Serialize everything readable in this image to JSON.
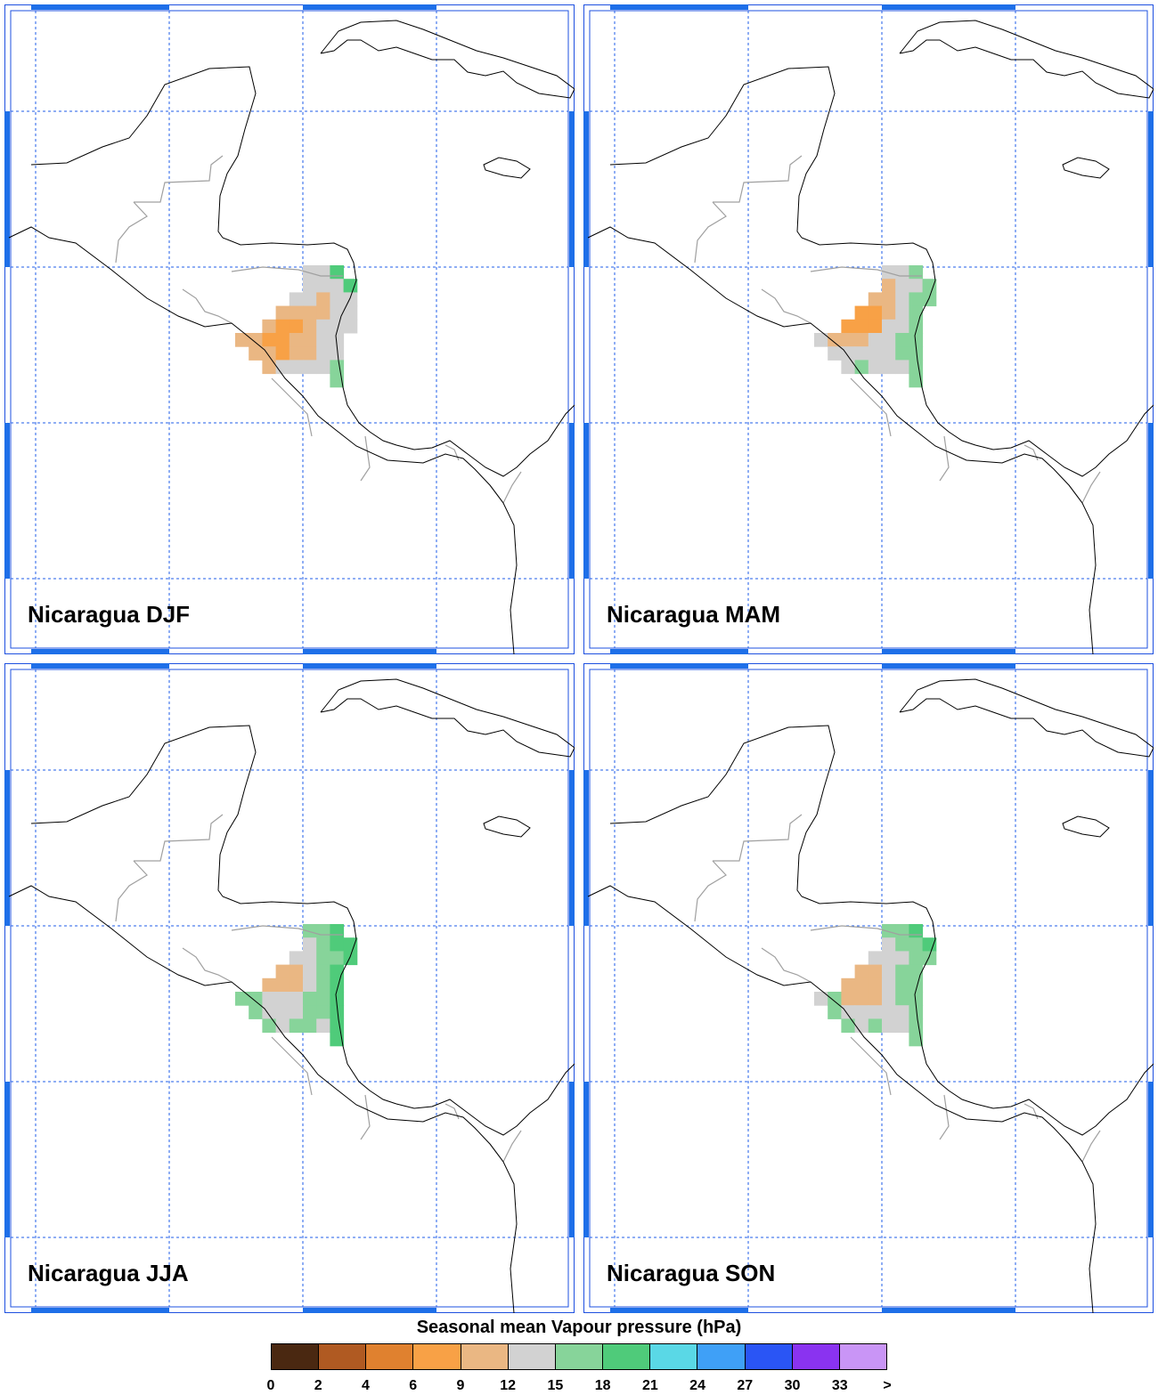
{
  "panels": [
    {
      "title": "Nicaragua DJF",
      "season": "DJF",
      "cells": [
        [
          0,
          0,
          5
        ],
        [
          1,
          0,
          5
        ],
        [
          2,
          0,
          7
        ],
        [
          0,
          1,
          5
        ],
        [
          1,
          1,
          5
        ],
        [
          2,
          1,
          5
        ],
        [
          3,
          1,
          7
        ],
        [
          -1,
          2,
          5
        ],
        [
          0,
          2,
          5
        ],
        [
          1,
          2,
          4
        ],
        [
          2,
          2,
          5
        ],
        [
          3,
          2,
          5
        ],
        [
          -2,
          3,
          4
        ],
        [
          -1,
          3,
          4
        ],
        [
          0,
          3,
          4
        ],
        [
          1,
          3,
          4
        ],
        [
          2,
          3,
          5
        ],
        [
          3,
          3,
          5
        ],
        [
          -3,
          4,
          4
        ],
        [
          -2,
          4,
          3
        ],
        [
          -1,
          4,
          3
        ],
        [
          0,
          4,
          4
        ],
        [
          1,
          4,
          5
        ],
        [
          2,
          4,
          5
        ],
        [
          3,
          4,
          5
        ],
        [
          -5,
          5,
          4
        ],
        [
          -4,
          5,
          4
        ],
        [
          -3,
          5,
          3
        ],
        [
          -2,
          5,
          3
        ],
        [
          -1,
          5,
          4
        ],
        [
          0,
          5,
          4
        ],
        [
          1,
          5,
          5
        ],
        [
          2,
          5,
          5
        ],
        [
          -4,
          6,
          4
        ],
        [
          -3,
          6,
          4
        ],
        [
          -2,
          6,
          3
        ],
        [
          -1,
          6,
          4
        ],
        [
          0,
          6,
          4
        ],
        [
          1,
          6,
          5
        ],
        [
          2,
          6,
          5
        ],
        [
          -3,
          7,
          4
        ],
        [
          -2,
          7,
          5
        ],
        [
          -1,
          7,
          5
        ],
        [
          0,
          7,
          5
        ],
        [
          1,
          7,
          5
        ],
        [
          2,
          7,
          6
        ],
        [
          2,
          8,
          6
        ]
      ]
    },
    {
      "title": "Nicaragua MAM",
      "season": "MAM",
      "cells": [
        [
          0,
          0,
          5
        ],
        [
          1,
          0,
          5
        ],
        [
          2,
          0,
          6
        ],
        [
          0,
          1,
          4
        ],
        [
          1,
          1,
          5
        ],
        [
          2,
          1,
          5
        ],
        [
          3,
          1,
          6
        ],
        [
          -1,
          2,
          4
        ],
        [
          0,
          2,
          4
        ],
        [
          1,
          2,
          5
        ],
        [
          2,
          2,
          6
        ],
        [
          3,
          2,
          6
        ],
        [
          -2,
          3,
          3
        ],
        [
          -1,
          3,
          3
        ],
        [
          0,
          3,
          4
        ],
        [
          1,
          3,
          5
        ],
        [
          2,
          3,
          6
        ],
        [
          -3,
          4,
          3
        ],
        [
          -2,
          4,
          3
        ],
        [
          -1,
          4,
          3
        ],
        [
          0,
          4,
          5
        ],
        [
          1,
          4,
          5
        ],
        [
          2,
          4,
          6
        ],
        [
          -5,
          5,
          5
        ],
        [
          -4,
          5,
          4
        ],
        [
          -3,
          5,
          4
        ],
        [
          -2,
          5,
          4
        ],
        [
          -1,
          5,
          5
        ],
        [
          0,
          5,
          5
        ],
        [
          1,
          5,
          6
        ],
        [
          2,
          5,
          6
        ],
        [
          -4,
          6,
          5
        ],
        [
          -3,
          6,
          5
        ],
        [
          -2,
          6,
          5
        ],
        [
          -1,
          6,
          5
        ],
        [
          0,
          6,
          5
        ],
        [
          1,
          6,
          6
        ],
        [
          2,
          6,
          6
        ],
        [
          -3,
          7,
          5
        ],
        [
          -2,
          7,
          6
        ],
        [
          -1,
          7,
          5
        ],
        [
          0,
          7,
          5
        ],
        [
          1,
          7,
          5
        ],
        [
          2,
          7,
          6
        ],
        [
          2,
          8,
          6
        ]
      ]
    },
    {
      "title": "Nicaragua JJA",
      "season": "JJA",
      "cells": [
        [
          0,
          0,
          6
        ],
        [
          1,
          0,
          6
        ],
        [
          2,
          0,
          7
        ],
        [
          0,
          1,
          5
        ],
        [
          1,
          1,
          6
        ],
        [
          2,
          1,
          7
        ],
        [
          3,
          1,
          7
        ],
        [
          -1,
          2,
          5
        ],
        [
          0,
          2,
          5
        ],
        [
          1,
          2,
          6
        ],
        [
          2,
          2,
          6
        ],
        [
          3,
          2,
          7
        ],
        [
          -2,
          3,
          4
        ],
        [
          -1,
          3,
          4
        ],
        [
          0,
          3,
          5
        ],
        [
          1,
          3,
          6
        ],
        [
          2,
          3,
          7
        ],
        [
          -3,
          4,
          4
        ],
        [
          -2,
          4,
          4
        ],
        [
          -1,
          4,
          4
        ],
        [
          0,
          4,
          5
        ],
        [
          1,
          4,
          6
        ],
        [
          2,
          4,
          7
        ],
        [
          -5,
          5,
          6
        ],
        [
          -4,
          5,
          6
        ],
        [
          -3,
          5,
          5
        ],
        [
          -2,
          5,
          5
        ],
        [
          -1,
          5,
          5
        ],
        [
          0,
          5,
          6
        ],
        [
          1,
          5,
          6
        ],
        [
          2,
          5,
          7
        ],
        [
          -4,
          6,
          6
        ],
        [
          -3,
          6,
          5
        ],
        [
          -2,
          6,
          5
        ],
        [
          -1,
          6,
          5
        ],
        [
          0,
          6,
          6
        ],
        [
          1,
          6,
          6
        ],
        [
          2,
          6,
          7
        ],
        [
          -3,
          7,
          6
        ],
        [
          -2,
          7,
          5
        ],
        [
          -1,
          7,
          6
        ],
        [
          0,
          7,
          6
        ],
        [
          1,
          7,
          5
        ],
        [
          2,
          7,
          7
        ],
        [
          2,
          8,
          7
        ]
      ]
    },
    {
      "title": "Nicaragua SON",
      "season": "SON",
      "cells": [
        [
          0,
          0,
          6
        ],
        [
          1,
          0,
          6
        ],
        [
          2,
          0,
          7
        ],
        [
          0,
          1,
          5
        ],
        [
          1,
          1,
          6
        ],
        [
          2,
          1,
          6
        ],
        [
          3,
          1,
          7
        ],
        [
          -1,
          2,
          5
        ],
        [
          0,
          2,
          5
        ],
        [
          1,
          2,
          5
        ],
        [
          2,
          2,
          6
        ],
        [
          3,
          2,
          6
        ],
        [
          -2,
          3,
          4
        ],
        [
          -1,
          3,
          4
        ],
        [
          0,
          3,
          5
        ],
        [
          1,
          3,
          6
        ],
        [
          2,
          3,
          6
        ],
        [
          -3,
          4,
          4
        ],
        [
          -2,
          4,
          4
        ],
        [
          -1,
          4,
          4
        ],
        [
          0,
          4,
          5
        ],
        [
          1,
          4,
          6
        ],
        [
          2,
          4,
          6
        ],
        [
          -5,
          5,
          5
        ],
        [
          -4,
          5,
          6
        ],
        [
          -3,
          5,
          4
        ],
        [
          -2,
          5,
          4
        ],
        [
          -1,
          5,
          4
        ],
        [
          0,
          5,
          5
        ],
        [
          1,
          5,
          6
        ],
        [
          2,
          5,
          6
        ],
        [
          -4,
          6,
          6
        ],
        [
          -3,
          6,
          5
        ],
        [
          -2,
          6,
          5
        ],
        [
          -1,
          6,
          5
        ],
        [
          0,
          6,
          5
        ],
        [
          1,
          6,
          5
        ],
        [
          2,
          6,
          6
        ],
        [
          -3,
          7,
          6
        ],
        [
          -2,
          7,
          5
        ],
        [
          -1,
          7,
          6
        ],
        [
          0,
          7,
          5
        ],
        [
          1,
          7,
          5
        ],
        [
          2,
          7,
          6
        ],
        [
          2,
          8,
          6
        ]
      ]
    }
  ],
  "legend": {
    "title": "Seasonal mean Vapour pressure (hPa)",
    "labels": [
      "0",
      "2",
      "4",
      "6",
      "9",
      "12",
      "15",
      "18",
      "21",
      "24",
      "27",
      "30",
      "33",
      ">"
    ],
    "colors": [
      "#4a2811",
      "#b05a22",
      "#e0812f",
      "#f8a146",
      "#eab783",
      "#d2d2d2",
      "#87d49a",
      "#4fcb7a",
      "#5ad8e6",
      "#3fa0f7",
      "#2a55f5",
      "#8a33f0",
      "#c995f6"
    ]
  },
  "colors": {
    "grid": "#1f5ee8",
    "frame": "#1e6fe8",
    "coast": "#000000",
    "border": "#a0a0a0"
  }
}
